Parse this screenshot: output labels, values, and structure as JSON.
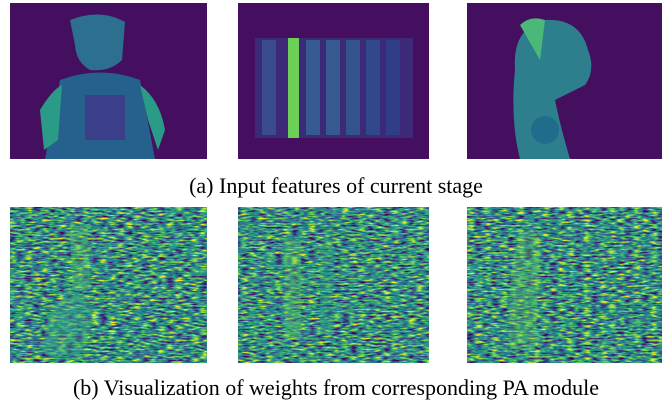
{
  "captions": {
    "a": "(a) Input features of current stage",
    "b": "(b) Visualization of weights from corresponding PA module"
  }
}
